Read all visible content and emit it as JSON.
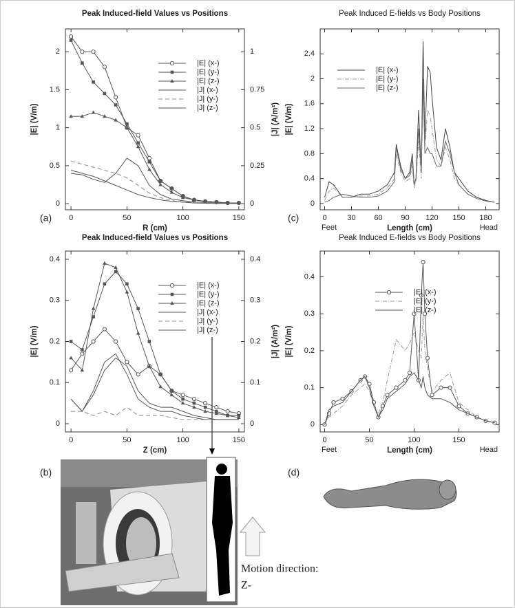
{
  "motion_text": [
    "Motion direction:",
    "Z-"
  ],
  "chart_data": [
    {
      "type": "line",
      "label": "(a)",
      "title": "Peak Induced-field Values vs Positions",
      "x_label": "R (cm)",
      "y_label": "|E| (V/m)",
      "y2_label": "|J| (A/m²)",
      "x": [
        0,
        10,
        20,
        30,
        40,
        50,
        60,
        70,
        80,
        90,
        100,
        110,
        120,
        130,
        140,
        150
      ],
      "xlim": [
        -5,
        155
      ],
      "xticks": [
        0,
        50,
        100,
        150
      ],
      "ylim": [
        -0.08,
        2.3
      ],
      "yticks": [
        0,
        0.5,
        1,
        1.5,
        2
      ],
      "y2lim": [
        -0.04,
        1.15
      ],
      "y2ticks": [
        0,
        0.25,
        0.5,
        0.75,
        1
      ],
      "legend": "upper right",
      "series": [
        {
          "name": "|E| (x-)",
          "color": "#555555",
          "marker": "circle",
          "values": [
            2.2,
            2.0,
            2.0,
            1.8,
            1.4,
            1.0,
            0.9,
            0.6,
            0.3,
            0.2,
            0.1,
            0.05,
            0.03,
            0.02,
            0.01,
            0.01
          ]
        },
        {
          "name": "|E| (y-)",
          "color": "#555555",
          "marker": "square",
          "values": [
            2.15,
            1.85,
            1.6,
            1.45,
            1.3,
            1.05,
            0.8,
            0.55,
            0.3,
            0.2,
            0.1,
            0.05,
            0.03,
            0.02,
            0.01,
            0.01
          ]
        },
        {
          "name": "|E| (z-)",
          "color": "#555555",
          "marker": "triangle",
          "values": [
            1.15,
            1.15,
            1.2,
            1.15,
            1.1,
            1.0,
            0.75,
            0.45,
            0.25,
            0.15,
            0.08,
            0.05,
            0.03,
            0.02,
            0.01,
            0.01
          ]
        },
        {
          "name": "|J| (x-)",
          "color": "#555555",
          "axis": "y2",
          "values": [
            0.2,
            0.19,
            0.16,
            0.14,
            0.2,
            0.3,
            0.25,
            0.12,
            0.06,
            0.03,
            0.02,
            0.01,
            0.01,
            0.005,
            0.003,
            0.002
          ]
        },
        {
          "name": "|J| (y-)",
          "color": "#888888",
          "axis": "y2",
          "dash": true,
          "values": [
            0.28,
            0.26,
            0.24,
            0.22,
            0.2,
            0.17,
            0.12,
            0.07,
            0.04,
            0.02,
            0.01,
            0.01,
            0.005,
            0.003,
            0.002,
            0.001
          ]
        },
        {
          "name": "|J| (z-)",
          "color": "#555555",
          "axis": "y2",
          "values": [
            0.22,
            0.2,
            0.18,
            0.15,
            0.12,
            0.09,
            0.06,
            0.04,
            0.025,
            0.015,
            0.01,
            0.005,
            0.003,
            0.002,
            0.001,
            0.001
          ]
        }
      ]
    },
    {
      "type": "line",
      "label": "(b)",
      "title": "Peak Induced-field Values vs Positions",
      "x_label": "Z (cm)",
      "y_label": "|E| (V/m)",
      "y2_label": "|J| (A/m²)",
      "x": [
        0,
        10,
        20,
        30,
        40,
        50,
        60,
        70,
        80,
        90,
        100,
        110,
        120,
        130,
        140,
        150
      ],
      "xlim": [
        -5,
        155
      ],
      "xticks": [
        0,
        50,
        100,
        150
      ],
      "ylim": [
        -0.02,
        0.42
      ],
      "yticks": [
        0,
        0.1,
        0.2,
        0.3,
        0.4
      ],
      "y2lim": [
        -0.02,
        0.42
      ],
      "y2ticks": [
        0,
        0.1,
        0.2,
        0.3,
        0.4
      ],
      "legend": "upper right",
      "series": [
        {
          "name": "|E| (x-)",
          "color": "#555555",
          "marker": "circle",
          "values": [
            0.13,
            0.17,
            0.2,
            0.23,
            0.2,
            0.15,
            0.12,
            0.14,
            0.12,
            0.08,
            0.07,
            0.06,
            0.05,
            0.04,
            0.03,
            0.025
          ]
        },
        {
          "name": "|E| (y-)",
          "color": "#555555",
          "marker": "square",
          "values": [
            0.2,
            0.18,
            0.26,
            0.34,
            0.37,
            0.34,
            0.28,
            0.2,
            0.12,
            0.08,
            0.06,
            0.05,
            0.04,
            0.03,
            0.02,
            0.02
          ]
        },
        {
          "name": "|E| (z-)",
          "color": "#555555",
          "marker": "triangle",
          "values": [
            0.16,
            0.13,
            0.28,
            0.39,
            0.38,
            0.32,
            0.22,
            0.14,
            0.09,
            0.07,
            0.05,
            0.04,
            0.03,
            0.025,
            0.02,
            0.015
          ]
        },
        {
          "name": "|J| (x-)",
          "color": "#555555",
          "axis": "y2",
          "values": [
            0.06,
            0.03,
            0.08,
            0.15,
            0.17,
            0.12,
            0.06,
            0.04,
            0.03,
            0.03,
            0.02,
            0.015,
            0.01,
            0.01,
            0.01,
            0.01
          ]
        },
        {
          "name": "|J| (y-)",
          "color": "#888888",
          "axis": "y2",
          "dash": true,
          "values": [
            0.03,
            0.03,
            0.02,
            0.03,
            0.02,
            0.04,
            0.02,
            0.02,
            0.02,
            0.015,
            0.01,
            0.01,
            0.01,
            0.01,
            0.01,
            0.01
          ]
        },
        {
          "name": "|J| (z-)",
          "color": "#555555",
          "axis": "y2",
          "values": [
            0.06,
            0.03,
            0.07,
            0.13,
            0.16,
            0.14,
            0.08,
            0.05,
            0.04,
            0.04,
            0.03,
            0.02,
            0.015,
            0.01,
            0.01,
            0.01
          ]
        }
      ]
    },
    {
      "type": "line",
      "label": "(c)",
      "title": "Peak Induced E-fields vs Body Positions",
      "x_label": "Length (cm)",
      "y_label": "|E| (V/m)",
      "x_end_labels": [
        "Feet",
        "Head"
      ],
      "x": [
        0,
        5,
        10,
        20,
        30,
        40,
        50,
        60,
        70,
        78,
        80,
        85,
        90,
        95,
        98,
        100,
        102,
        105,
        108,
        110,
        112,
        115,
        118,
        120,
        125,
        130,
        135,
        140,
        145,
        150,
        160,
        170,
        180,
        190
      ],
      "xlim": [
        -5,
        195
      ],
      "xticks": [
        0,
        30,
        60,
        90,
        120,
        150,
        180
      ],
      "ylim": [
        -0.1,
        2.8
      ],
      "yticks": [
        0,
        0.4,
        0.8,
        1.2,
        1.6,
        2,
        2.4
      ],
      "legend": "upper left",
      "series": [
        {
          "name": "|E| (x-)",
          "color": "#444444",
          "values": [
            0.1,
            0.35,
            0.3,
            0.1,
            0.1,
            0.15,
            0.15,
            0.2,
            0.3,
            0.5,
            0.95,
            0.6,
            0.4,
            0.5,
            0.8,
            0.3,
            0.4,
            1.5,
            0.5,
            2.6,
            1.0,
            2.2,
            2.1,
            1.7,
            0.9,
            0.7,
            1.2,
            0.9,
            0.5,
            0.4,
            0.2,
            0.1,
            0.05,
            0.02
          ]
        },
        {
          "name": "|E| (y-)",
          "color": "#999999",
          "dash": "dashdot",
          "values": [
            0.05,
            0.2,
            0.25,
            0.1,
            0.1,
            0.12,
            0.12,
            0.15,
            0.25,
            0.4,
            0.8,
            0.5,
            0.35,
            0.4,
            0.6,
            0.25,
            0.35,
            1.0,
            0.4,
            1.9,
            0.9,
            1.5,
            1.4,
            1.2,
            0.7,
            0.6,
            0.9,
            0.7,
            0.4,
            0.3,
            0.15,
            0.08,
            0.04,
            0.02
          ]
        },
        {
          "name": "|E| (z-)",
          "color": "#666666",
          "values": [
            0.02,
            0.05,
            0.1,
            0.15,
            0.12,
            0.1,
            0.1,
            0.12,
            0.2,
            0.35,
            0.9,
            0.55,
            0.4,
            0.45,
            0.7,
            0.3,
            0.4,
            1.2,
            0.5,
            2.0,
            0.8,
            0.9,
            0.8,
            0.8,
            0.6,
            0.6,
            1.0,
            0.8,
            0.5,
            0.3,
            0.15,
            0.08,
            0.04,
            0.02
          ]
        }
      ]
    },
    {
      "type": "line",
      "label": "(d)",
      "title": "Peak Induced E-fields vs Body Positions",
      "x_label": "Length (cm)",
      "y_label": "|E| (V/m)",
      "x_end_labels": [
        "Feet",
        "Head"
      ],
      "x": [
        0,
        5,
        10,
        20,
        30,
        40,
        45,
        50,
        55,
        60,
        65,
        70,
        80,
        90,
        95,
        100,
        105,
        108,
        110,
        112,
        115,
        120,
        130,
        140,
        150,
        160,
        170,
        180,
        190
      ],
      "xlim": [
        -5,
        195
      ],
      "xticks": [
        0,
        50,
        100,
        150
      ],
      "ylim": [
        -0.02,
        0.47
      ],
      "yticks": [
        0,
        0.1,
        0.2,
        0.3,
        0.4
      ],
      "legend": "upper center",
      "series": [
        {
          "name": "|E| (x-)",
          "color": "#555555",
          "marker": "circle",
          "values": [
            0,
            0.03,
            0.06,
            0.07,
            0.09,
            0.12,
            0.13,
            0.11,
            0.06,
            0.02,
            0.05,
            0.08,
            0.1,
            0.12,
            0.14,
            0.3,
            0.12,
            0.35,
            0.44,
            0.3,
            0.18,
            0.08,
            0.1,
            0.1,
            0.05,
            0.03,
            0.02,
            0.01,
            0.005
          ]
        },
        {
          "name": "|E| (y-)",
          "color": "#999999",
          "dash": "dashdot",
          "values": [
            0,
            0.02,
            0.03,
            0.05,
            0.08,
            0.1,
            0.11,
            0.09,
            0.05,
            0.03,
            0.06,
            0.12,
            0.23,
            0.2,
            0.22,
            0.25,
            0.2,
            0.18,
            0.3,
            0.2,
            0.15,
            0.09,
            0.12,
            0.14,
            0.06,
            0.04,
            0.02,
            0.01,
            0.005
          ]
        },
        {
          "name": "|E| (z-)",
          "color": "#555555",
          "values": [
            0,
            0.04,
            0.05,
            0.06,
            0.09,
            0.12,
            0.13,
            0.1,
            0.05,
            0.02,
            0.04,
            0.07,
            0.09,
            0.11,
            0.13,
            0.14,
            0.12,
            0.1,
            0.13,
            0.1,
            0.08,
            0.07,
            0.07,
            0.06,
            0.04,
            0.03,
            0.02,
            0.01,
            0.005
          ]
        }
      ]
    }
  ]
}
